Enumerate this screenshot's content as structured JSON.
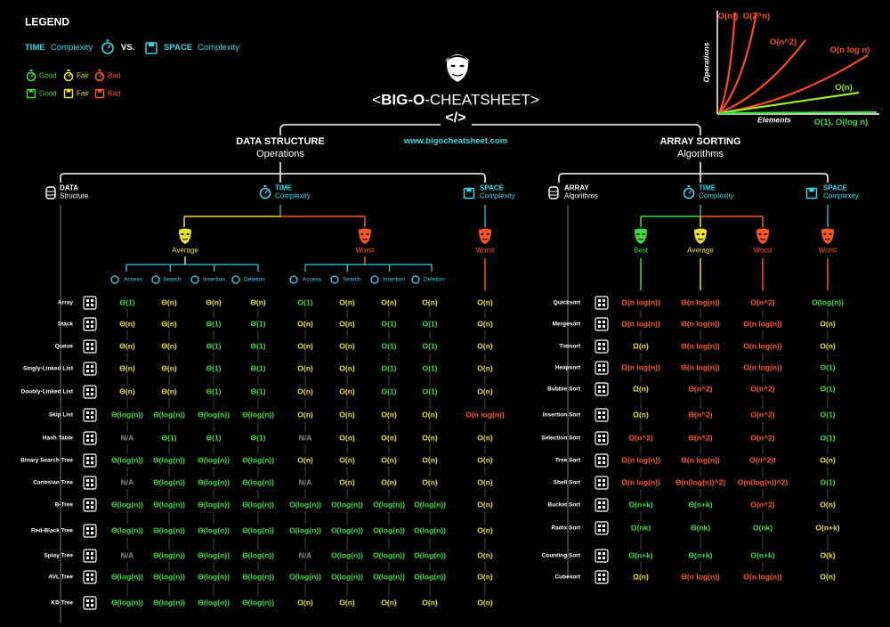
{
  "legend": {
    "title": "LEGEND",
    "time": "TIME",
    "time_label": "Complexity",
    "vs": "VS.",
    "space": "SPACE",
    "space_label": "Complexity",
    "ratings": [
      {
        "label": "Good",
        "color": "#3ddc3d"
      },
      {
        "label": "Fair",
        "color": "#e8e030"
      },
      {
        "label": "Bad",
        "color": "#ff5722"
      }
    ]
  },
  "header": {
    "open": "<",
    "title_bold": "BIG-O",
    "title_rest": "-CHEATSHEET",
    "close": ">",
    "tag": "</>",
    "url": "www.bigocheatsheet.com"
  },
  "graph": {
    "y_label": "Operations",
    "x_label": "Elements",
    "curves": [
      {
        "label": "O(n!)",
        "color": "#ff4a1a"
      },
      {
        "label": "O(2^n)",
        "color": "#ff4a1a"
      },
      {
        "label": "O(n^2)",
        "color": "#ff4a1a"
      },
      {
        "label": "O(n log n)",
        "color": "#ff4a1a"
      },
      {
        "label": "O(n)",
        "color": "#9be82e"
      },
      {
        "label": "O(1), O(log n)",
        "color": "#3ddc3d"
      }
    ]
  },
  "data_structures": {
    "title": "DATA STRUCTURE",
    "subtitle": "Operations",
    "col_structure": [
      "DATA",
      "Structure"
    ],
    "col_time": [
      "TIME",
      "Complexity"
    ],
    "col_space": [
      "SPACE",
      "Complexity"
    ],
    "average": "Average",
    "worst": "Worst",
    "space_worst": "Worst",
    "operations": [
      "Access",
      "Search",
      "Insertion",
      "Deletion"
    ],
    "rows": [
      {
        "name": "Array",
        "cells": [
          "Θ(1)",
          "Θ(n)",
          "Θ(n)",
          "Θ(n)",
          "O(1)",
          "O(n)",
          "O(n)",
          "O(n)",
          "O(n)"
        ],
        "colors": [
          "#3ddc3d",
          "#e8e030",
          "#e8e030",
          "#e8e030",
          "#3ddc3d",
          "#e8e030",
          "#e8e030",
          "#e8e030",
          "#e8e030"
        ]
      },
      {
        "name": "Stack",
        "cells": [
          "Θ(n)",
          "Θ(n)",
          "Θ(1)",
          "Θ(1)",
          "O(n)",
          "O(n)",
          "O(1)",
          "O(1)",
          "O(n)"
        ],
        "colors": [
          "#e8e030",
          "#e8e030",
          "#3ddc3d",
          "#3ddc3d",
          "#e8e030",
          "#e8e030",
          "#3ddc3d",
          "#3ddc3d",
          "#e8e030"
        ]
      },
      {
        "name": "Queue",
        "cells": [
          "Θ(n)",
          "Θ(n)",
          "Θ(1)",
          "Θ(1)",
          "O(n)",
          "O(n)",
          "O(1)",
          "O(1)",
          "O(n)"
        ],
        "colors": [
          "#e8e030",
          "#e8e030",
          "#3ddc3d",
          "#3ddc3d",
          "#e8e030",
          "#e8e030",
          "#3ddc3d",
          "#3ddc3d",
          "#e8e030"
        ]
      },
      {
        "name": "Singly-Linked List",
        "cells": [
          "Θ(n)",
          "Θ(n)",
          "Θ(1)",
          "Θ(1)",
          "O(n)",
          "O(n)",
          "O(1)",
          "O(1)",
          "O(n)"
        ],
        "colors": [
          "#e8e030",
          "#e8e030",
          "#3ddc3d",
          "#3ddc3d",
          "#e8e030",
          "#e8e030",
          "#3ddc3d",
          "#3ddc3d",
          "#e8e030"
        ]
      },
      {
        "name": "Doubly-Linked List",
        "cells": [
          "Θ(n)",
          "Θ(n)",
          "Θ(1)",
          "Θ(1)",
          "O(n)",
          "O(n)",
          "O(1)",
          "O(1)",
          "O(n)"
        ],
        "colors": [
          "#e8e030",
          "#e8e030",
          "#3ddc3d",
          "#3ddc3d",
          "#e8e030",
          "#e8e030",
          "#3ddc3d",
          "#3ddc3d",
          "#e8e030"
        ]
      },
      {
        "name": "Skip List",
        "cells": [
          "Θ(log(n))",
          "Θ(log(n))",
          "Θ(log(n))",
          "Θ(log(n))",
          "O(n)",
          "O(n)",
          "O(n)",
          "O(n)",
          "O(n log(n))"
        ],
        "colors": [
          "#3ddc3d",
          "#3ddc3d",
          "#3ddc3d",
          "#3ddc3d",
          "#e8e030",
          "#e8e030",
          "#e8e030",
          "#e8e030",
          "#ff5722"
        ]
      },
      {
        "name": "Hash Table",
        "cells": [
          "N/A",
          "Θ(1)",
          "Θ(1)",
          "Θ(1)",
          "N/A",
          "O(n)",
          "O(n)",
          "O(n)",
          "O(n)"
        ],
        "colors": [
          "#8a8a8a",
          "#3ddc3d",
          "#3ddc3d",
          "#3ddc3d",
          "#8a8a8a",
          "#e8e030",
          "#e8e030",
          "#e8e030",
          "#e8e030"
        ]
      },
      {
        "name": "Binary Search Tree",
        "cells": [
          "Θ(log(n))",
          "Θ(log(n))",
          "Θ(log(n))",
          "Θ(log(n))",
          "O(n)",
          "O(n)",
          "O(n)",
          "O(n)",
          "O(n)"
        ],
        "colors": [
          "#3ddc3d",
          "#3ddc3d",
          "#3ddc3d",
          "#3ddc3d",
          "#e8e030",
          "#e8e030",
          "#e8e030",
          "#e8e030",
          "#e8e030"
        ]
      },
      {
        "name": "Cartesian Tree",
        "cells": [
          "N/A",
          "Θ(log(n))",
          "Θ(log(n))",
          "Θ(log(n))",
          "N/A",
          "O(n)",
          "O(n)",
          "O(n)",
          "O(n)"
        ],
        "colors": [
          "#8a8a8a",
          "#3ddc3d",
          "#3ddc3d",
          "#3ddc3d",
          "#8a8a8a",
          "#e8e030",
          "#e8e030",
          "#e8e030",
          "#e8e030"
        ]
      },
      {
        "name": "B-Tree",
        "cells": [
          "Θ(log(n))",
          "Θ(log(n))",
          "Θ(log(n))",
          "Θ(log(n))",
          "O(log(n))",
          "O(log(n))",
          "O(log(n))",
          "O(log(n))",
          "O(n)"
        ],
        "colors": [
          "#3ddc3d",
          "#3ddc3d",
          "#3ddc3d",
          "#3ddc3d",
          "#3ddc3d",
          "#3ddc3d",
          "#3ddc3d",
          "#3ddc3d",
          "#e8e030"
        ]
      },
      {
        "name": "Red-Black Tree",
        "cells": [
          "Θ(log(n))",
          "Θ(log(n))",
          "Θ(log(n))",
          "Θ(log(n))",
          "O(log(n))",
          "O(log(n))",
          "O(log(n))",
          "O(log(n))",
          "O(n)"
        ],
        "colors": [
          "#3ddc3d",
          "#3ddc3d",
          "#3ddc3d",
          "#3ddc3d",
          "#3ddc3d",
          "#3ddc3d",
          "#3ddc3d",
          "#3ddc3d",
          "#e8e030"
        ]
      },
      {
        "name": "Splay Tree",
        "cells": [
          "N/A",
          "Θ(log(n))",
          "Θ(log(n))",
          "Θ(log(n))",
          "N/A",
          "O(log(n))",
          "O(log(n))",
          "O(log(n))",
          "O(n)"
        ],
        "colors": [
          "#8a8a8a",
          "#3ddc3d",
          "#3ddc3d",
          "#3ddc3d",
          "#8a8a8a",
          "#3ddc3d",
          "#3ddc3d",
          "#3ddc3d",
          "#e8e030"
        ]
      },
      {
        "name": "AVL Tree",
        "cells": [
          "Θ(log(n))",
          "Θ(log(n))",
          "Θ(log(n))",
          "Θ(log(n))",
          "O(log(n))",
          "O(log(n))",
          "O(log(n))",
          "O(log(n))",
          "O(n)"
        ],
        "colors": [
          "#3ddc3d",
          "#3ddc3d",
          "#3ddc3d",
          "#3ddc3d",
          "#3ddc3d",
          "#3ddc3d",
          "#3ddc3d",
          "#3ddc3d",
          "#e8e030"
        ]
      },
      {
        "name": "KD Tree",
        "cells": [
          "Θ(log(n))",
          "Θ(log(n))",
          "Θ(log(n))",
          "Θ(log(n))",
          "O(n)",
          "O(n)",
          "O(n)",
          "O(n)",
          "O(n)"
        ],
        "colors": [
          "#3ddc3d",
          "#3ddc3d",
          "#3ddc3d",
          "#3ddc3d",
          "#e8e030",
          "#e8e030",
          "#e8e030",
          "#e8e030",
          "#e8e030"
        ]
      }
    ]
  },
  "sorting": {
    "title": "ARRAY SORTING",
    "subtitle": "Algorithms",
    "col_array": [
      "ARRAY",
      "Algorithms"
    ],
    "col_time": [
      "TIME",
      "Complexity"
    ],
    "col_space": [
      "SPACE",
      "Complexity"
    ],
    "columns": [
      "Best",
      "Average",
      "Worst",
      "Worst"
    ],
    "rows": [
      {
        "name": "Quicksort",
        "cells": [
          "Ω(n log(n))",
          "Θ(n log(n))",
          "O(n^2)",
          "O(log(n))"
        ],
        "colors": [
          "#ff5722",
          "#ff5722",
          "#ff5722",
          "#3ddc3d"
        ]
      },
      {
        "name": "Mergesort",
        "cells": [
          "Ω(n log(n))",
          "Θ(n log(n))",
          "O(n log(n))",
          "O(n)"
        ],
        "colors": [
          "#ff5722",
          "#ff5722",
          "#ff5722",
          "#e8e030"
        ]
      },
      {
        "name": "Timsort",
        "cells": [
          "Ω(n)",
          "Θ(n log(n))",
          "O(n log(n))",
          "O(n)"
        ],
        "colors": [
          "#e8e030",
          "#ff5722",
          "#ff5722",
          "#e8e030"
        ]
      },
      {
        "name": "Heapsort",
        "cells": [
          "Ω(n log(n))",
          "Θ(n log(n))",
          "O(n log(n))",
          "O(1)"
        ],
        "colors": [
          "#ff5722",
          "#ff5722",
          "#ff5722",
          "#3ddc3d"
        ]
      },
      {
        "name": "Bubble Sort",
        "cells": [
          "Ω(n)",
          "Θ(n^2)",
          "O(n^2)",
          "O(1)"
        ],
        "colors": [
          "#e8e030",
          "#ff5722",
          "#ff5722",
          "#3ddc3d"
        ]
      },
      {
        "name": "Insertion Sort",
        "cells": [
          "Ω(n)",
          "Θ(n^2)",
          "O(n^2)",
          "O(1)"
        ],
        "colors": [
          "#e8e030",
          "#ff5722",
          "#ff5722",
          "#3ddc3d"
        ]
      },
      {
        "name": "Selection Sort",
        "cells": [
          "Ω(n^2)",
          "Θ(n^2)",
          "O(n^2)",
          "O(1)"
        ],
        "colors": [
          "#ff5722",
          "#ff5722",
          "#ff5722",
          "#3ddc3d"
        ]
      },
      {
        "name": "Tree Sort",
        "cells": [
          "Ω(n log(n))",
          "Θ(n log(n))",
          "O(n^2)t",
          "O(n)"
        ],
        "colors": [
          "#ff5722",
          "#ff5722",
          "#ff5722",
          "#e8e030"
        ]
      },
      {
        "name": "Shell Sort",
        "cells": [
          "Ω(n log(n))",
          "Θ(n(log(n))^2)",
          "O(n(log(n))^2)",
          "O(1)"
        ],
        "colors": [
          "#ff5722",
          "#ff5722",
          "#ff5722",
          "#3ddc3d"
        ]
      },
      {
        "name": "Bucket Sort",
        "cells": [
          "Ω(n+k)",
          "Θ(n+k)",
          "O(n^2)",
          "O(n)"
        ],
        "colors": [
          "#3ddc3d",
          "#3ddc3d",
          "#ff5722",
          "#e8e030"
        ]
      },
      {
        "name": "Radix Sort",
        "cells": [
          "Ω(nk)",
          "Θ(nk)",
          "O(nk)",
          "O(n+k)"
        ],
        "colors": [
          "#3ddc3d",
          "#3ddc3d",
          "#3ddc3d",
          "#e8e030"
        ]
      },
      {
        "name": "Counting Sort",
        "cells": [
          "Ω(n+k)",
          "Θ(n+k)",
          "O(n+k)",
          "O(k)"
        ],
        "colors": [
          "#3ddc3d",
          "#3ddc3d",
          "#3ddc3d",
          "#e8e030"
        ]
      },
      {
        "name": "Cubesort",
        "cells": [
          "Ω(n)",
          "Θ(n log(n))",
          "O(n log(n))",
          "O(n)"
        ],
        "colors": [
          "#e8e030",
          "#ff5722",
          "#ff5722",
          "#e8e030"
        ]
      }
    ]
  }
}
